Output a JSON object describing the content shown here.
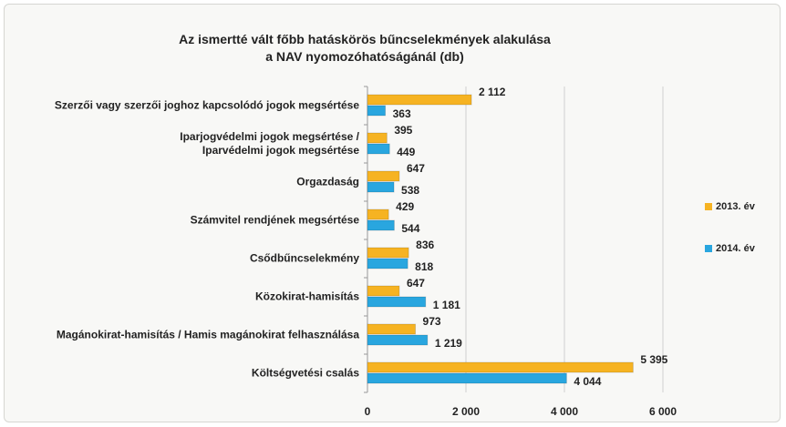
{
  "chart_data": {
    "type": "bar",
    "orientation": "horizontal",
    "title": "Az ismertté vált főbb hatáskörös bűncselekmények alakulása\na NAV nyomozóhatóságánál (db)",
    "categories": [
      "Szerzői vagy szerzői joghoz kapcsolódó jogok megsértése",
      "Iparjogvédelmi jogok megsértése /\nIparvédelmi jogok megsértése",
      "Orgazdaság",
      "Számvitel rendjének megsértése",
      "Csődbűncselekmény",
      "Közokirat-hamisítás",
      "Magánokirat-hamisítás / Hamis magánokirat felhasználása",
      "Költségvetési csalás"
    ],
    "series": [
      {
        "name": "2013. év",
        "color": "#f6b322",
        "values": [
          2112,
          395,
          647,
          429,
          836,
          647,
          973,
          5395
        ],
        "value_labels": [
          "2 112",
          "395",
          "647",
          "429",
          "836",
          "647",
          "973",
          "5 395"
        ]
      },
      {
        "name": "2014. év",
        "color": "#29a6df",
        "values": [
          363,
          449,
          538,
          544,
          818,
          1181,
          1219,
          4044
        ],
        "value_labels": [
          "363",
          "449",
          "538",
          "544",
          "818",
          "1 181",
          "1 219",
          "4 044"
        ]
      }
    ],
    "xlim": [
      0,
      6000
    ],
    "xticks": [
      0,
      {
        "value": 2000,
        "label": "2 000"
      },
      {
        "value": 4000,
        "label": "4 000"
      },
      {
        "value": 6000,
        "label": "6 000"
      }
    ],
    "grid": true,
    "legend": "right"
  }
}
